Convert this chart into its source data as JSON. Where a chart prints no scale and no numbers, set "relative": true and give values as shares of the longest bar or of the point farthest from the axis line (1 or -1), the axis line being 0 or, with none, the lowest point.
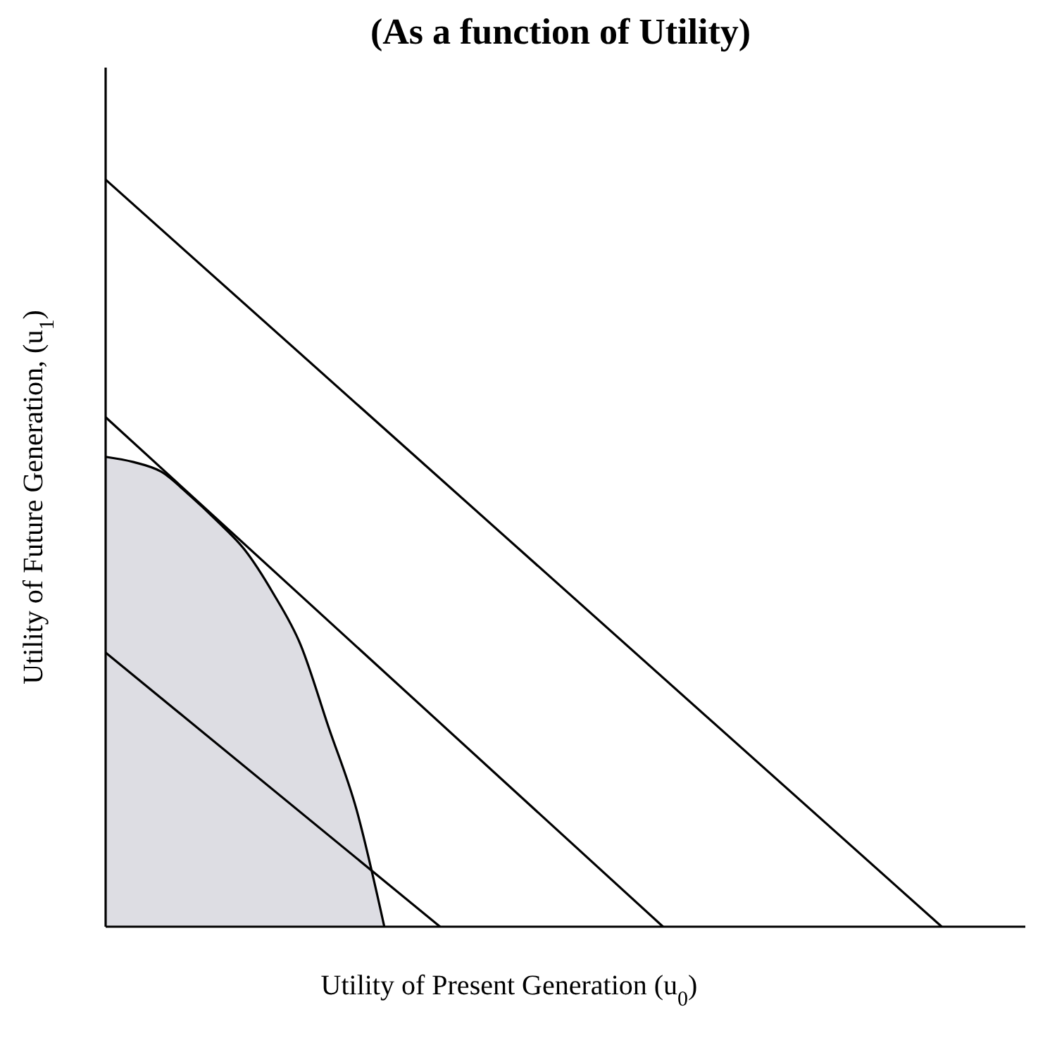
{
  "chart_data": {
    "type": "line",
    "title": "(As a function of Utility)",
    "xlabel": "Utility of Present Generation (u$_{0}$)",
    "ylabel": "Utility of Future Generation, (u$_{1}$)",
    "relative": true,
    "categories": [
      null,
      null,
      null,
      null,
      null,
      null,
      null,
      null,
      null,
      null,
      null,
      null,
      null,
      null,
      null,
      null,
      null,
      null,
      null,
      null,
      null,
      null,
      null,
      null,
      null,
      null,
      null,
      null,
      null,
      null,
      null,
      null,
      null,
      null
    ],
    "series": [
      {
        "type": "area",
        "color": "#dddde3",
        "values": [
          0.629,
          0.622,
          0.609,
          0.578,
          0.543,
          0.504,
          0.447,
          0.377,
          0.267,
          0.157,
          0,
          null,
          null,
          null,
          null,
          null,
          null,
          null,
          null,
          null,
          null,
          null,
          null,
          null,
          null,
          null,
          null,
          null,
          null,
          null,
          null,
          null,
          null,
          null
        ]
      },
      {
        "color": "#000000",
        "values": [
          1,
          null,
          null,
          null,
          null,
          null,
          null,
          null,
          null,
          null,
          null,
          null,
          null,
          null,
          null,
          null,
          null,
          null,
          null,
          null,
          null,
          null,
          null,
          null,
          null,
          null,
          null,
          null,
          null,
          null,
          0,
          null,
          null,
          null
        ]
      },
      {
        "color": "#000000",
        "values": [
          0.682,
          null,
          null,
          null,
          null,
          null,
          null,
          null,
          null,
          null,
          null,
          null,
          null,
          null,
          null,
          null,
          null,
          null,
          null,
          null,
          0,
          null,
          null,
          null,
          null,
          null,
          null,
          null,
          null,
          null,
          null,
          null,
          null,
          null
        ]
      },
      {
        "color": "#000000",
        "values": [
          0.367,
          null,
          null,
          null,
          null,
          null,
          null,
          null,
          null,
          null,
          null,
          null,
          0,
          null,
          null,
          null,
          null,
          null,
          null,
          null,
          null,
          null,
          null,
          null,
          null,
          null,
          null,
          null,
          null,
          null,
          null,
          null,
          null,
          null
        ]
      }
    ]
  }
}
